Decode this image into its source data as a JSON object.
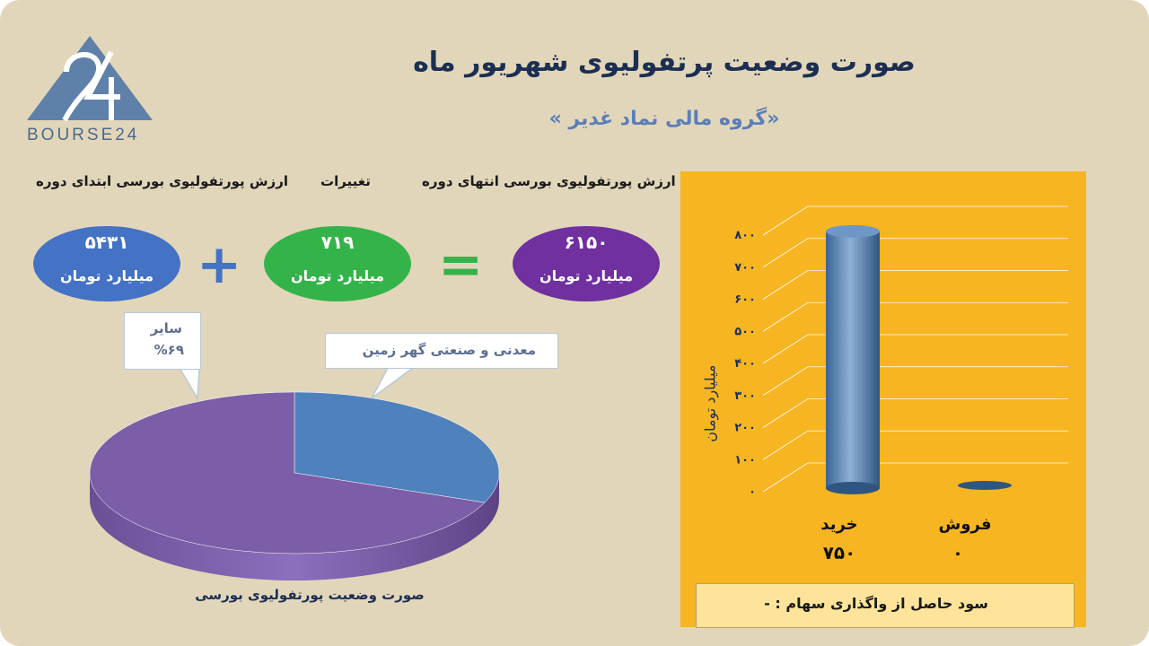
{
  "header": {
    "title": "صورت وضعیت پرتفولیوی شهریور ماه",
    "subtitle": "«گروه مالی نماد غدیر »",
    "logo_text": "BOURSE24"
  },
  "columns": {
    "start_label": "ارزش پورتفولیوی بورسی ابتدای دوره",
    "change_label": "تغییرات",
    "end_label": "ارزش پورتفولیوی بورسی انتهای دوره"
  },
  "equation": {
    "start_value": "۵۴۳۱",
    "change_value": "۷۱۹",
    "end_value": "۶۱۵۰",
    "unit": "میلیارد تومان",
    "plus": "+",
    "equals": "=",
    "colors": {
      "start": "#4472c4",
      "change": "#34b34a",
      "end": "#7030a0"
    }
  },
  "pie": {
    "caption": "صورت وضعیت پورتفولیوی بورسی",
    "callout_other_name": "سایر",
    "callout_other_value": "%۶۹",
    "callout_mining": "معدنی و صنعتی گهر زمین"
  },
  "bar_panel": {
    "ylabel": "میلیارد تومان",
    "profit_text": "سود حاصل از واگذاری سهام : -"
  },
  "chart_data": [
    {
      "type": "pie",
      "categories": [
        "سایر",
        "معدنی و صنعتی گهر زمین"
      ],
      "values": [
        69,
        31
      ],
      "colors": [
        "#7b5ea7",
        "#4f81bd"
      ],
      "title": "صورت وضعیت پورتفولیوی بورسی"
    },
    {
      "type": "bar",
      "categories": [
        "خرید",
        "فروش"
      ],
      "value_labels": [
        "۷۵۰",
        "۰"
      ],
      "values": [
        750,
        0
      ],
      "ylim": [
        0,
        800
      ],
      "yticks": [
        0,
        100,
        200,
        300,
        400,
        500,
        600,
        700,
        800
      ],
      "ytick_labels": [
        "۰",
        "۱۰۰",
        "۲۰۰",
        "۳۰۰",
        "۴۰۰",
        "۵۰۰",
        "۶۰۰",
        "۷۰۰",
        "۸۰۰"
      ],
      "ylabel": "میلیارد تومان",
      "grid": true,
      "color": "#4f81bd"
    }
  ]
}
